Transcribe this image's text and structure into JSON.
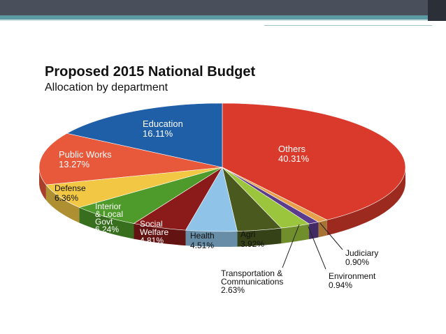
{
  "chart_data": {
    "type": "pie",
    "title": "Proposed 2015 National Budget",
    "subtitle": "Allocation by department",
    "slices": [
      {
        "label": "Others",
        "value": 40.31,
        "display": "40.31%",
        "color": "#d93a2b"
      },
      {
        "label": "Judiciary",
        "value": 0.9,
        "display": "0.90%",
        "color": "#e8a04a"
      },
      {
        "label": "Environment",
        "value": 0.94,
        "display": "0.94%",
        "color": "#5b3b8c"
      },
      {
        "label": "Transportation & Communications",
        "value": 2.63,
        "display": "2.63%",
        "color": "#9bc53d"
      },
      {
        "label": "Agri",
        "value": 3.92,
        "display": "3.92%",
        "color": "#4a5a1e"
      },
      {
        "label": "Health",
        "value": 4.51,
        "display": "4.51%",
        "color": "#8fc4e8"
      },
      {
        "label": "Social Welfare",
        "value": 4.81,
        "display": "4.81%",
        "color": "#8b1a1a"
      },
      {
        "label": "Interior & Local Govt",
        "value": 6.24,
        "display": "6.24%",
        "color": "#4e9a2a"
      },
      {
        "label": "Defense",
        "value": 6.36,
        "display": "6.36%",
        "color": "#f2c744"
      },
      {
        "label": "Public Works",
        "value": 13.27,
        "display": "13.27%",
        "color": "#e8583a"
      },
      {
        "label": "Education",
        "value": 16.11,
        "display": "16.11%",
        "color": "#1f5fa8"
      }
    ]
  }
}
